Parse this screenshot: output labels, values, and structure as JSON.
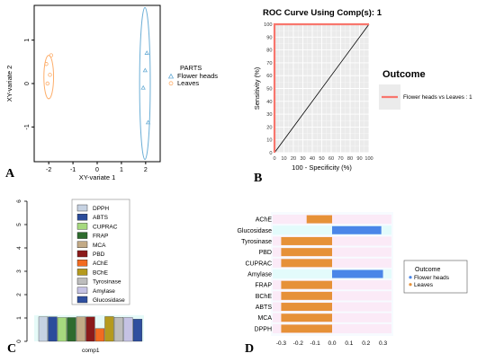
{
  "panel_labels": [
    "A",
    "B",
    "C",
    "D"
  ],
  "chart_data": [
    {
      "type": "scatter",
      "panel": "A",
      "title": "",
      "xlabel": "XY-variate 1",
      "ylabel": "XY-variate 2",
      "xlim": [
        -2.6,
        2.6
      ],
      "ylim": [
        -1.8,
        1.8
      ],
      "x_ticks": [
        -2,
        -1,
        0,
        1,
        2
      ],
      "y_ticks": [
        -1,
        0,
        1
      ],
      "grid": false,
      "legend_position": "right",
      "legend_title": "PARTS",
      "series": [
        {
          "name": "Flower heads",
          "marker": "triangle",
          "color": "#6baed6",
          "points": [
            [
              1.98,
              0.3
            ],
            [
              2.05,
              0.7
            ],
            [
              1.9,
              -0.1
            ],
            [
              2.1,
              -0.9
            ]
          ],
          "ellipse": {
            "cx": 1.97,
            "cy": 0.0,
            "rx": 0.22,
            "ry": 1.75
          }
        },
        {
          "name": "Leaves",
          "marker": "circle",
          "color": "#fdae6b",
          "points": [
            [
              -2.05,
              0.0
            ],
            [
              -1.95,
              0.2
            ],
            [
              -2.1,
              0.45
            ],
            [
              -1.9,
              0.65
            ]
          ],
          "ellipse": {
            "cx": -2.0,
            "cy": 0.15,
            "rx": 0.2,
            "ry": 0.5
          }
        }
      ]
    },
    {
      "type": "line",
      "panel": "B",
      "title": "ROC Curve Using Comp(s): 1",
      "xlabel": "100 - Specificity (%)",
      "ylabel": "Sensitivity (%)",
      "xlim": [
        0,
        100
      ],
      "ylim": [
        0,
        100
      ],
      "x_ticks": [
        0,
        10,
        20,
        30,
        40,
        50,
        60,
        70,
        80,
        90,
        100
      ],
      "y_ticks": [
        0,
        10,
        20,
        30,
        40,
        50,
        60,
        70,
        80,
        90,
        100
      ],
      "grid": true,
      "legend_title": "Outcome",
      "series": [
        {
          "name": "Flower heads vs Leaves : 1",
          "color": "#f8766d",
          "x": [
            0,
            0,
            100
          ],
          "y": [
            0,
            100,
            100
          ]
        },
        {
          "color": "#000000",
          "x": [
            0,
            100
          ],
          "y": [
            0,
            100
          ]
        }
      ]
    },
    {
      "type": "bar",
      "panel": "C",
      "xlabel": "comp1",
      "ylim": [
        0,
        6
      ],
      "y_ticks": [
        0,
        1,
        2,
        3,
        4,
        5,
        6
      ],
      "legend_position": "top",
      "categories": [
        "DPPH",
        "ABTS",
        "CUPRAC",
        "FRAP",
        "MCA",
        "PBD",
        "AChE",
        "BChE",
        "Tyrosinase",
        "Amylase",
        "Glucosidase"
      ],
      "colors": [
        "#c6d2e2",
        "#2b4c9b",
        "#a6d97e",
        "#2e6b2e",
        "#c2aa86",
        "#8b1a1a",
        "#f26b21",
        "#b59a1e",
        "#bdbdbd",
        "#c5c2e4",
        "#2f4f9f"
      ],
      "values": [
        1.05,
        1.05,
        1.02,
        1.02,
        1.05,
        1.05,
        0.55,
        1.06,
        1.03,
        1.02,
        0.95
      ]
    },
    {
      "type": "bar",
      "panel": "D",
      "orientation": "horizontal",
      "xlim": [
        -0.35,
        0.35
      ],
      "x_ticks": [
        -0.3,
        -0.2,
        -0.1,
        0.0,
        0.1,
        0.2,
        0.3
      ],
      "x_tick_labels": [
        "-0.3",
        "-0.2",
        "-0.1",
        "0.0",
        "0.1",
        "0.2",
        "0.3"
      ],
      "legend_title": "Outcome",
      "legend_position": "right",
      "categories": [
        "AChE",
        "Glucosidase",
        "Tyrosinase",
        "PBD",
        "CUPRAC",
        "Amylase",
        "FRAP",
        "BChE",
        "ABTS",
        "MCA",
        "DPPH"
      ],
      "values": [
        -0.15,
        0.29,
        -0.3,
        -0.3,
        -0.3,
        0.3,
        -0.3,
        -0.3,
        -0.3,
        -0.3,
        -0.3
      ],
      "groups": [
        "Leaves",
        "Flower heads",
        "Leaves",
        "Leaves",
        "Leaves",
        "Flower heads",
        "Leaves",
        "Leaves",
        "Leaves",
        "Leaves",
        "Leaves"
      ],
      "series": [
        {
          "name": "Flower heads",
          "color": "#4a86e8"
        },
        {
          "name": "Leaves",
          "color": "#e69138"
        }
      ]
    }
  ]
}
